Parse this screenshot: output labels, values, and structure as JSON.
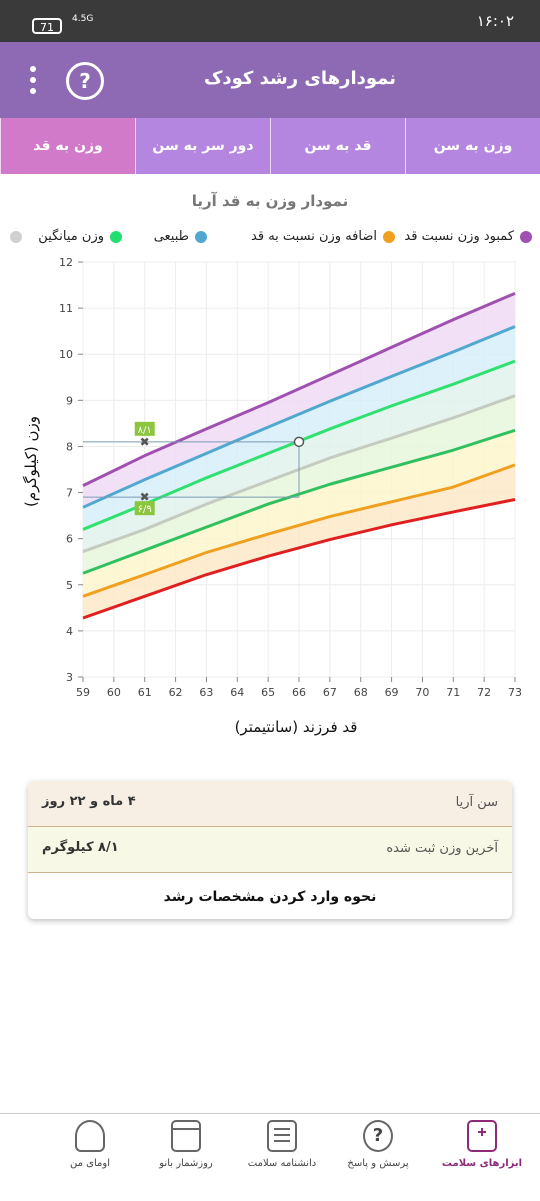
{
  "status": {
    "time": "۱۶:۰۲",
    "battery": "71",
    "network": "4.5G"
  },
  "appbar": {
    "title": "نمودارهای رشد کودک",
    "help": "?"
  },
  "tabs": [
    {
      "label": "وزن به سن",
      "active": false
    },
    {
      "label": "قد به سن",
      "active": false
    },
    {
      "label": "دور سر به سن",
      "active": false
    },
    {
      "label": "وزن به قد",
      "active": true
    }
  ],
  "chart_data": {
    "type": "line",
    "title": "نمودار وزن به قد آریا",
    "xlabel": "قد فرزند (سانتیمتر)",
    "ylabel": "وزن (کیلوگرم)",
    "xlim": [
      59,
      73
    ],
    "ylim": [
      3,
      12
    ],
    "xticks": [
      59,
      60,
      61,
      62,
      63,
      64,
      65,
      66,
      67,
      68,
      69,
      70,
      71,
      72,
      73
    ],
    "yticks": [
      3,
      4,
      5,
      6,
      7,
      8,
      9,
      10,
      11,
      12
    ],
    "grid": true,
    "x": [
      59,
      61,
      63,
      65,
      67,
      69,
      71,
      73
    ],
    "series": [
      {
        "name": "کمبود وزن نسبت قد",
        "color": "#e02020",
        "values": [
          4.28,
          4.75,
          5.22,
          5.62,
          5.98,
          6.3,
          6.58,
          6.85
        ]
      },
      {
        "name": "کمبود وزن نسبت قد",
        "color": "#f0a020",
        "values": [
          4.75,
          5.22,
          5.7,
          6.1,
          6.48,
          6.8,
          7.12,
          7.6
        ]
      },
      {
        "name": "طبیعی",
        "color": "#30c060",
        "values": [
          5.25,
          5.75,
          6.25,
          6.75,
          7.18,
          7.55,
          7.92,
          8.35
        ]
      },
      {
        "name": "وزن میانگین",
        "color": "#c4cbc0",
        "values": [
          5.72,
          6.2,
          6.75,
          7.25,
          7.75,
          8.18,
          8.62,
          9.1
        ]
      },
      {
        "name": "طبیعی",
        "color": "#30e070",
        "values": [
          6.2,
          6.75,
          7.32,
          7.85,
          8.38,
          8.88,
          9.35,
          9.85
        ]
      },
      {
        "name": "اضافه وزن نسبت به قد",
        "color": "#50a8d0",
        "values": [
          6.68,
          7.28,
          7.85,
          8.42,
          8.98,
          9.52,
          10.05,
          10.6
        ]
      },
      {
        "name": "کمبود وزن نسبت قد",
        "color": "#a050b0",
        "values": [
          7.15,
          7.8,
          8.38,
          8.95,
          9.55,
          10.15,
          10.75,
          11.32
        ]
      }
    ],
    "band_colors": [
      "#fbd6d6",
      "#fde9c8",
      "#fdf6cc",
      "#e6f7dc",
      "#e2f2ec",
      "#d6eff8",
      "#f0dcf4"
    ],
    "point": {
      "x": 66,
      "y": 8.1
    },
    "markers": [
      {
        "x": 61,
        "y": 8.1,
        "label": "۸/۱"
      },
      {
        "x": 61,
        "y": 6.9,
        "label": "۶/۹"
      }
    ]
  },
  "legend": [
    {
      "label": "کمبود وزن نسبت قد",
      "color": "#a050b0"
    },
    {
      "label": "اضافه وزن نسبت به قد",
      "color": "#f0a020"
    },
    {
      "label": "طبیعی",
      "color": "#50a8d0"
    },
    {
      "label": "وزن میانگین",
      "color": "#20e070"
    },
    {
      "label": "",
      "color": "#d0d0d0"
    }
  ],
  "info": {
    "age_label": "سن آریا",
    "age_value": "۴ ماه و ۲۲ روز",
    "weight_label": "آخرین وزن ثبت شده",
    "weight_value": "۸/۱ کیلوگرم",
    "howto": "نحوه وارد کردن مشخصات رشد"
  },
  "nav": [
    {
      "label": "ابزارهای سلامت",
      "icon": "medical-kit-icon",
      "active": true
    },
    {
      "label": "پرسش و پاسخ",
      "icon": "question-icon",
      "active": false
    },
    {
      "label": "دانشنامه سلامت",
      "icon": "newspaper-icon",
      "active": false
    },
    {
      "label": "روزشمار بانو",
      "icon": "calendar-icon",
      "active": false
    },
    {
      "label": "اومای من",
      "icon": "profile-icon",
      "active": false
    }
  ]
}
